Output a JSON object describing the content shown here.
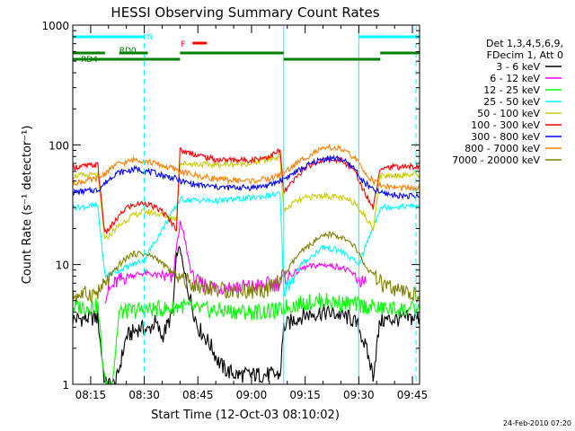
{
  "chart_data": {
    "type": "line",
    "title": "HESSI Observing Summary Count Rates",
    "xlabel": "Start Time (12-Oct-03 08:10:02)",
    "ylabel": "Count Rate (s⁻¹ detector⁻¹)",
    "y_scale": "log",
    "ylim": [
      1,
      1000
    ],
    "xlim": [
      "08:10",
      "09:47"
    ],
    "x_ticks": [
      "08:15",
      "08:30",
      "08:45",
      "09:00",
      "09:15",
      "09:30",
      "09:45"
    ],
    "y_ticks": [
      "1",
      "10",
      "100",
      "1000"
    ],
    "grid": false,
    "legend_position": "right",
    "legend_header": [
      "Det 1,3,4,5,6,9,",
      "FDecim 1, Att 0"
    ],
    "timestamp": "24-Feb-2010 07:20",
    "annotations": {
      "night_label": "N",
      "flare_label": "F",
      "rd0_label": "RD0",
      "rd4_label": "RD4",
      "night_intervals": [
        [
          "08:10",
          "08:30"
        ],
        [
          "09:30",
          "09:47"
        ]
      ],
      "flare_intervals": [
        [
          "08:40",
          "08:44"
        ]
      ],
      "rd0_intervals": [
        [
          "08:10",
          "08:19"
        ],
        [
          "08:23",
          "08:31"
        ]
      ],
      "rd4_intervals": [
        [
          "08:10",
          "08:40"
        ],
        [
          "08:40",
          "09:09"
        ],
        [
          "09:09",
          "09:36"
        ],
        [
          "09:36",
          "09:47"
        ]
      ],
      "dashed_lines_at": [
        "08:30",
        "09:46"
      ],
      "solid_lines_at": [
        "09:09",
        "09:30"
      ],
      "colors": {
        "night": "#00ffff",
        "flare": "#ff0000",
        "decimation": "#008000"
      }
    },
    "series": [
      {
        "name": "3 - 6 keV",
        "color": "#000000",
        "x": [
          "08:10",
          "08:17",
          "08:19",
          "08:22",
          "08:25",
          "08:29",
          "08:31",
          "08:33",
          "08:35",
          "08:37",
          "08:38",
          "08:39",
          "08:40",
          "08:41",
          "08:43",
          "08:45",
          "08:47",
          "08:49",
          "08:51",
          "08:53",
          "08:56",
          "09:00",
          "09:05",
          "09:08",
          "09:09",
          "09:12",
          "09:15",
          "09:20",
          "09:25",
          "09:28",
          "09:30",
          "09:32",
          "09:34",
          "09:36",
          "09:40",
          "09:47"
        ],
        "y": [
          3.5,
          3.6,
          1,
          1,
          2.5,
          3,
          2.8,
          3.3,
          2.5,
          3.4,
          4,
          12,
          14,
          9,
          5,
          3,
          2.5,
          2,
          1.5,
          1.3,
          1.2,
          1.2,
          1.2,
          1.2,
          3,
          3.5,
          3.8,
          4,
          3.8,
          3.5,
          3,
          2,
          1.2,
          3.4,
          3.5,
          3.6
        ]
      },
      {
        "name": "6 - 12 keV",
        "color": "#ff00ff",
        "x": [
          "08:19",
          "08:22",
          "08:25",
          "08:30",
          "08:35",
          "08:38",
          "08:39",
          "08:40",
          "08:41",
          "08:43",
          "08:45",
          "08:50",
          "09:00",
          "09:08",
          "09:09",
          "09:12",
          "09:15",
          "09:20",
          "09:25",
          "09:28",
          "09:30",
          "09:32"
        ],
        "y": [
          5.5,
          7,
          8,
          8.5,
          8,
          7.5,
          14,
          22,
          18,
          9,
          7,
          6.5,
          6.5,
          7,
          7.5,
          8.5,
          9.5,
          10,
          9.5,
          8.5,
          7.5,
          7
        ]
      },
      {
        "name": "12 - 25 keV",
        "color": "#00ff00",
        "x": [
          "08:10",
          "08:17",
          "08:19",
          "08:21",
          "08:23",
          "08:30",
          "08:38",
          "08:40",
          "08:45",
          "09:00",
          "09:08",
          "09:09",
          "09:15",
          "09:20",
          "09:30",
          "09:36",
          "09:47"
        ],
        "y": [
          4.4,
          4.5,
          1,
          1,
          4,
          4.2,
          4.3,
          4.6,
          4.2,
          4.0,
          4.1,
          4.4,
          4.8,
          5,
          4.6,
          4.3,
          4.2
        ]
      },
      {
        "name": "25 - 50 keV",
        "color": "#00ffff",
        "x": [
          "08:10",
          "08:17",
          "08:19",
          "08:30",
          "08:40",
          "08:50",
          "09:00",
          "09:08",
          "09:09",
          "09:14",
          "09:20",
          "09:25",
          "09:30",
          "09:36",
          "09:47"
        ],
        "y": [
          30,
          31,
          8,
          11,
          35,
          34,
          36,
          39,
          6,
          10,
          14,
          13,
          10,
          30,
          31
        ]
      },
      {
        "name": "50 - 100 keV",
        "color": "#cccc00",
        "x": [
          "08:10",
          "08:17",
          "08:19",
          "08:22",
          "08:26",
          "08:30",
          "08:35",
          "08:39",
          "08:40",
          "08:50",
          "09:00",
          "09:08",
          "09:09",
          "09:12",
          "09:15",
          "09:20",
          "09:25",
          "09:29",
          "09:30",
          "09:34",
          "09:36",
          "09:47"
        ],
        "y": [
          55,
          56,
          16,
          20,
          25,
          28,
          26,
          24,
          70,
          68,
          70,
          80,
          28,
          33,
          36,
          38,
          36,
          33,
          30,
          20,
          55,
          57
        ]
      },
      {
        "name": "100 - 300 keV",
        "color": "#ff0000",
        "x": [
          "08:10",
          "08:17",
          "08:19",
          "08:25",
          "08:30",
          "08:35",
          "08:39",
          "08:40",
          "08:50",
          "09:00",
          "09:05",
          "09:08",
          "09:09",
          "09:15",
          "09:20",
          "09:25",
          "09:29",
          "09:30",
          "09:34",
          "09:36",
          "09:47"
        ],
        "y": [
          65,
          68,
          18,
          30,
          33,
          28,
          20,
          90,
          75,
          75,
          80,
          90,
          40,
          65,
          75,
          75,
          60,
          50,
          30,
          65,
          66
        ]
      },
      {
        "name": "300 - 800 keV",
        "color": "#0000ff",
        "x": [
          "08:10",
          "08:17",
          "08:22",
          "08:28",
          "08:33",
          "08:39",
          "08:40",
          "08:45",
          "08:52",
          "09:00",
          "09:05",
          "09:09",
          "09:14",
          "09:18",
          "09:22",
          "09:25",
          "09:29",
          "09:31",
          "09:34",
          "09:36",
          "09:40",
          "09:47"
        ],
        "y": [
          40,
          42,
          58,
          63,
          58,
          52,
          50,
          46,
          44,
          44,
          46,
          52,
          63,
          73,
          78,
          76,
          63,
          50,
          42,
          40,
          38,
          37
        ]
      },
      {
        "name": "800 - 7000 keV",
        "color": "#ff8000",
        "x": [
          "08:10",
          "08:17",
          "08:22",
          "08:28",
          "08:33",
          "08:39",
          "08:40",
          "08:45",
          "08:52",
          "09:00",
          "09:05",
          "09:09",
          "09:14",
          "09:18",
          "09:22",
          "09:25",
          "09:29",
          "09:31",
          "09:34",
          "09:36",
          "09:40",
          "09:47"
        ],
        "y": [
          48,
          52,
          68,
          76,
          70,
          62,
          60,
          55,
          51,
          50,
          52,
          58,
          75,
          88,
          95,
          92,
          78,
          62,
          50,
          46,
          44,
          43
        ]
      },
      {
        "name": "7000 - 20000 keV",
        "color": "#808000",
        "x": [
          "08:10",
          "08:17",
          "08:20",
          "08:23",
          "08:26",
          "08:29",
          "08:33",
          "08:38",
          "08:41",
          "08:45",
          "08:52",
          "09:00",
          "09:05",
          "09:09",
          "09:13",
          "09:18",
          "09:22",
          "09:25",
          "09:29",
          "09:32",
          "09:36",
          "09:40",
          "09:47"
        ],
        "y": [
          5.5,
          5.8,
          7.5,
          10,
          12,
          12.5,
          11.5,
          8.5,
          7.5,
          6.6,
          6.1,
          6.0,
          6.3,
          8,
          12,
          16,
          18,
          17,
          14,
          9.5,
          7,
          6,
          5.5
        ]
      }
    ]
  }
}
